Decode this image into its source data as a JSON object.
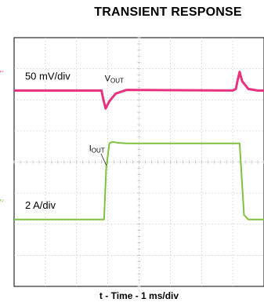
{
  "chart_data": {
    "type": "line",
    "title": "TRANSIENT RESPONSE",
    "xlabel": "t - Time - 1 ms/div",
    "ylabel": "",
    "grid": true,
    "x_divisions": 8,
    "y_divisions": 8,
    "xlim": [
      0,
      8
    ],
    "ylim": [
      0,
      8
    ],
    "series": [
      {
        "name": "VOUT",
        "name_main": "V",
        "name_sub": "OUT",
        "scale_label": "50 mV/div",
        "color": "#e8327d",
        "points": [
          [
            0,
            6.3
          ],
          [
            2.8,
            6.3
          ],
          [
            2.85,
            6.05
          ],
          [
            2.93,
            5.72
          ],
          [
            3.05,
            5.95
          ],
          [
            3.25,
            6.2
          ],
          [
            3.6,
            6.32
          ],
          [
            7.0,
            6.3
          ],
          [
            7.1,
            6.35
          ],
          [
            7.15,
            6.6
          ],
          [
            7.22,
            6.9
          ],
          [
            7.3,
            6.6
          ],
          [
            7.5,
            6.35
          ],
          [
            7.8,
            6.3
          ],
          [
            8,
            6.3
          ]
        ]
      },
      {
        "name": "IOUT",
        "name_main": "I",
        "name_sub": "OUT",
        "scale_label": "2 A/div",
        "color": "#7dc241",
        "points": [
          [
            0,
            2.15
          ],
          [
            2.88,
            2.15
          ],
          [
            2.95,
            3.8
          ],
          [
            3.05,
            4.6
          ],
          [
            3.15,
            4.65
          ],
          [
            3.3,
            4.62
          ],
          [
            3.6,
            4.6
          ],
          [
            7.22,
            4.6
          ],
          [
            7.28,
            3.6
          ],
          [
            7.36,
            2.3
          ],
          [
            7.5,
            2.15
          ],
          [
            8,
            2.15
          ]
        ]
      }
    ]
  }
}
